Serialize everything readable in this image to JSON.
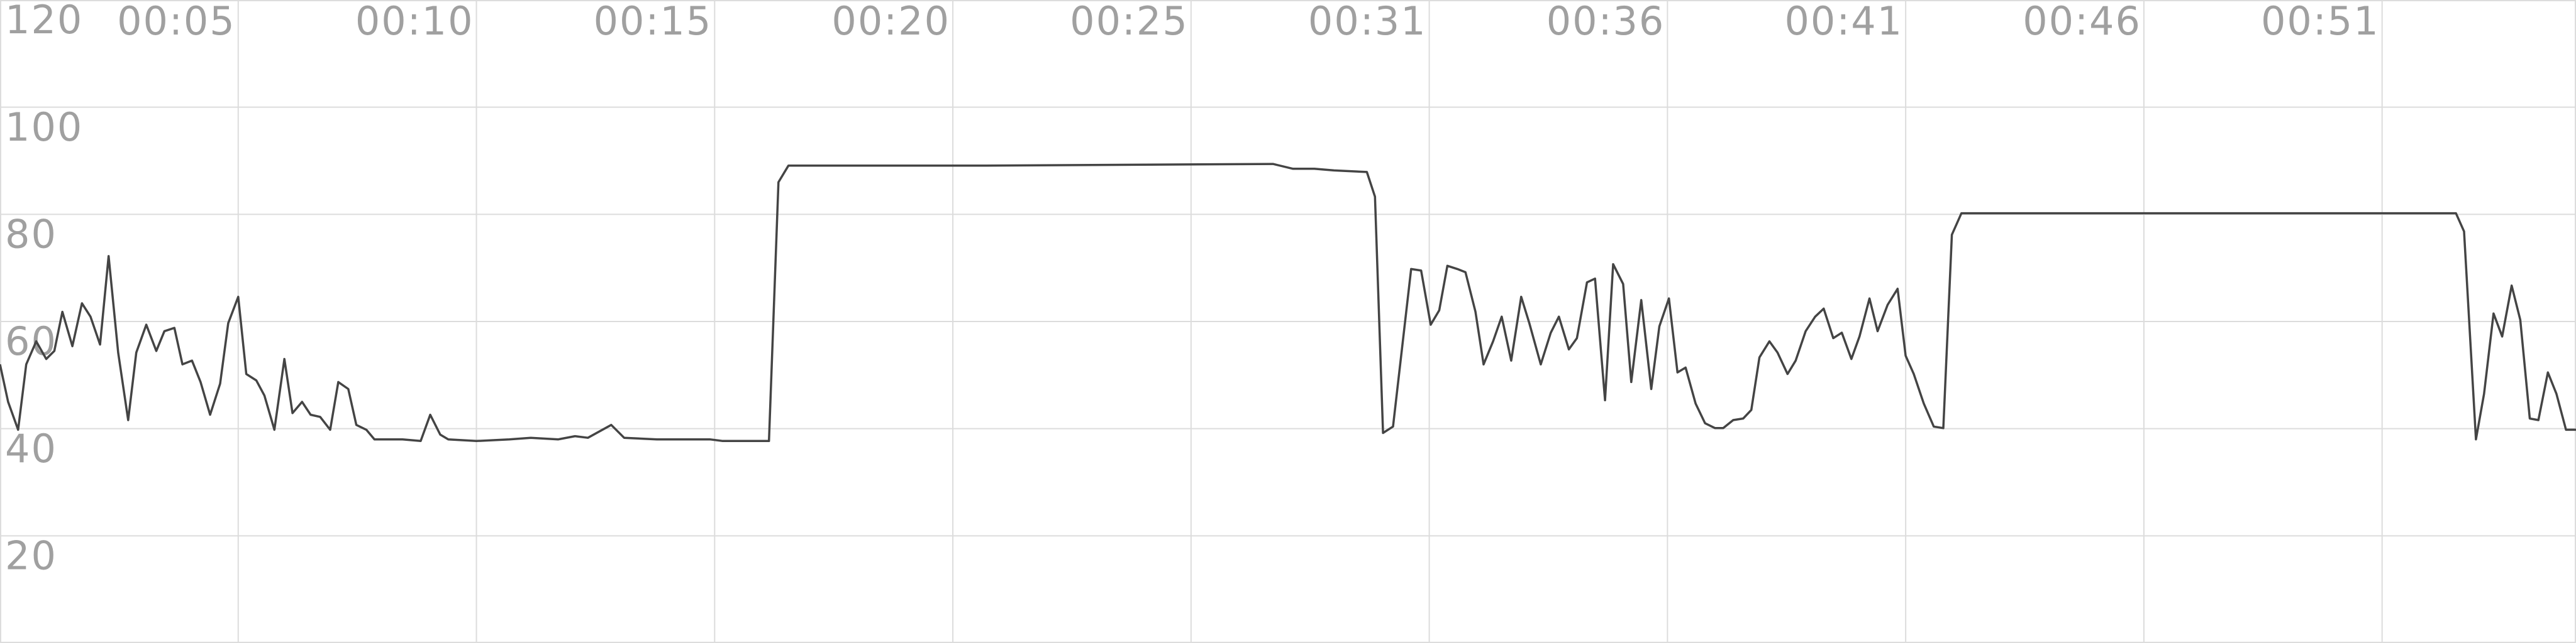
{
  "chart_data": {
    "type": "line",
    "x": [
      0,
      0.17,
      0.38,
      0.55,
      0.76,
      0.97,
      1.14,
      1.31,
      1.52,
      1.72,
      1.9,
      2.1,
      2.28,
      2.48,
      2.69,
      2.86,
      3.07,
      3.28,
      3.45,
      3.66,
      3.83,
      4.03,
      4.21,
      4.41,
      4.62,
      4.79,
      5.0,
      5.17,
      5.38,
      5.55,
      5.76,
      5.97,
      6.14,
      6.34,
      6.52,
      6.72,
      6.93,
      7.1,
      7.31,
      7.48,
      7.69,
      7.86,
      8.45,
      8.83,
      9.03,
      9.24,
      9.41,
      10.0,
      10.69,
      11.14,
      11.72,
      12.07,
      12.34,
      12.83,
      13.1,
      13.79,
      14.9,
      15.17,
      16.14,
      16.34,
      16.55,
      20.69,
      26.72,
      27.14,
      27.59,
      28.0,
      28.69,
      28.86,
      29.03,
      29.24,
      29.62,
      29.83,
      30.03,
      30.21,
      30.38,
      30.59,
      30.76,
      30.97,
      31.14,
      31.34,
      31.52,
      31.72,
      31.93,
      32.1,
      32.34,
      32.55,
      32.72,
      32.93,
      33.1,
      33.31,
      33.48,
      33.69,
      33.86,
      34.07,
      34.24,
      34.45,
      34.66,
      34.83,
      35.03,
      35.21,
      35.38,
      35.59,
      35.79,
      36.0,
      36.17,
      36.38,
      36.59,
      36.76,
      36.93,
      37.14,
      37.31,
      37.52,
      37.69,
      37.9,
      38.1,
      38.28,
      38.48,
      38.66,
      38.86,
      39.03,
      39.24,
      39.41,
      39.62,
      39.83,
      40.0,
      40.17,
      40.38,
      40.59,
      40.79,
      40.97,
      41.17,
      44.83,
      51.55,
      51.72,
      51.97,
      52.14,
      52.34,
      52.52,
      52.72,
      52.9,
      53.1,
      53.28,
      53.48,
      53.66,
      53.86,
      54.07
    ],
    "series": [
      {
        "color": "#444444",
        "values": [
          52.0,
          45.0,
          39.8,
          52.0,
          56.3,
          53.0,
          54.5,
          61.8,
          55.4,
          63.4,
          60.9,
          55.7,
          72.2,
          54.2,
          41.6,
          54.2,
          59.4,
          54.5,
          58.2,
          58.8,
          52.0,
          52.7,
          48.7,
          42.6,
          48.4,
          59.7,
          64.6,
          50.2,
          49.0,
          46.2,
          39.8,
          53.0,
          42.9,
          45.0,
          42.6,
          42.2,
          39.8,
          48.7,
          47.4,
          40.7,
          39.8,
          38.0,
          38.0,
          37.7,
          42.6,
          38.9,
          38.0,
          37.7,
          38.0,
          38.3,
          38.0,
          38.6,
          38.3,
          40.7,
          38.3,
          38.0,
          38.0,
          37.7,
          37.7,
          86.0,
          89.1,
          89.1,
          89.4,
          88.5,
          88.5,
          88.2,
          87.9,
          83.3,
          39.2,
          40.4,
          69.8,
          69.5,
          59.4,
          62.1,
          70.4,
          69.8,
          69.2,
          61.8,
          52.0,
          56.3,
          60.9,
          52.7,
          64.6,
          59.7,
          52.0,
          57.9,
          60.9,
          54.8,
          56.9,
          67.3,
          68.0,
          45.3,
          70.7,
          67.0,
          48.7,
          64.0,
          47.4,
          59.1,
          64.3,
          50.5,
          51.4,
          44.7,
          41.0,
          40.1,
          40.1,
          41.6,
          41.9,
          43.5,
          53.3,
          56.3,
          54.2,
          50.2,
          52.7,
          58.2,
          60.9,
          62.4,
          56.9,
          57.9,
          53.0,
          57.2,
          64.3,
          58.2,
          63.1,
          66.1,
          53.6,
          50.2,
          44.7,
          40.4,
          40.1,
          76.2,
          80.2,
          80.2,
          80.2,
          76.8,
          38.0,
          46.5,
          61.5,
          57.2,
          66.7,
          60.3,
          41.9,
          41.6,
          50.5,
          46.5,
          39.8,
          39.8
        ]
      }
    ],
    "xlim": [
      0,
      54.07
    ],
    "xticks": [
      {
        "value": 5,
        "label": "00:05"
      },
      {
        "value": 10,
        "label": "00:10"
      },
      {
        "value": 15,
        "label": "00:15"
      },
      {
        "value": 20,
        "label": "00:20"
      },
      {
        "value": 25,
        "label": "00:25"
      },
      {
        "value": 30,
        "label": "00:31"
      },
      {
        "value": 35,
        "label": "00:36"
      },
      {
        "value": 40,
        "label": "00:41"
      },
      {
        "value": 45,
        "label": "00:46"
      },
      {
        "value": 50,
        "label": "00:51"
      }
    ],
    "ylim": [
      0,
      120
    ],
    "yticks": [
      20,
      40,
      60,
      80,
      100,
      120
    ],
    "grid": true
  }
}
